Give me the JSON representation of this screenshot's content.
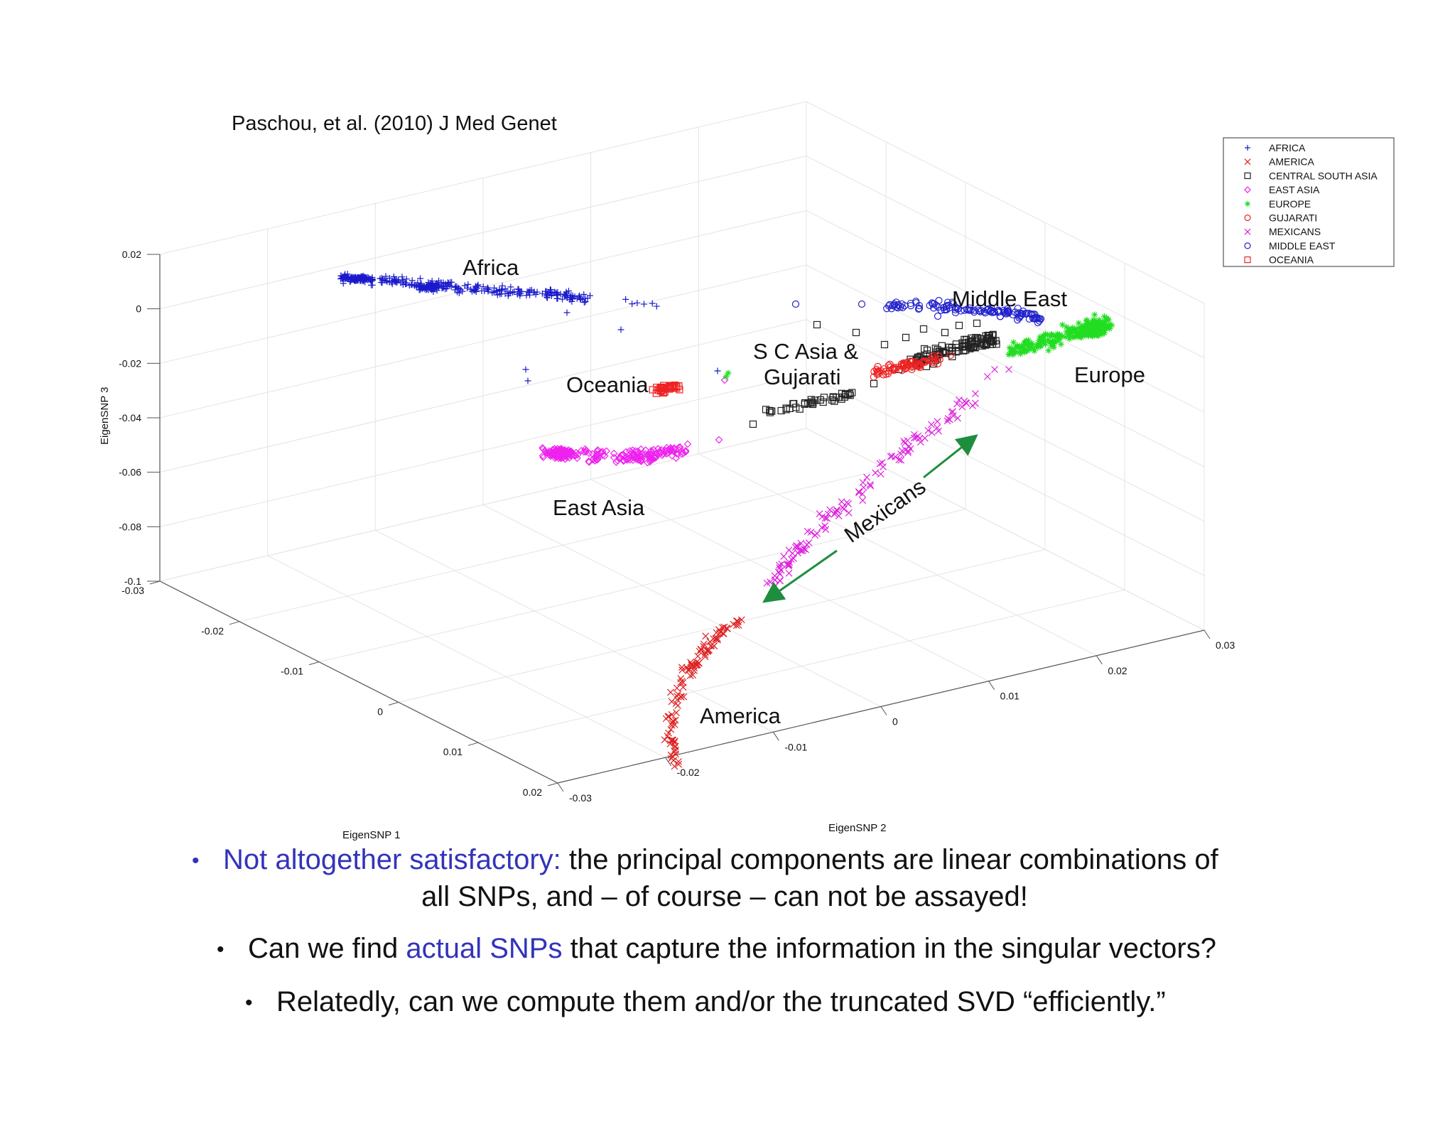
{
  "citation": "Paschou, et al. (2010) J Med Genet",
  "chart_data": {
    "type": "scatter",
    "projection": "3d",
    "xlabel": "EigenSNP 1",
    "ylabel": "EigenSNP 2",
    "zlabel": "EigenSNP 3",
    "xlim": [
      -0.03,
      0.02
    ],
    "ylim": [
      -0.03,
      0.03
    ],
    "zlim": [
      -0.1,
      0.02
    ],
    "xticks": [
      "-0.03",
      "-0.02",
      "-0.01",
      "0",
      "0.01",
      "0.02"
    ],
    "yticks": [
      "-0.03",
      "-0.02",
      "-0.01",
      "0",
      "0.01",
      "0.02",
      "0.03"
    ],
    "zticks": [
      "0.02",
      "0",
      "-0.02",
      "-0.04",
      "-0.06",
      "-0.08",
      "-0.1"
    ],
    "grid": true,
    "legend_position": "top-right",
    "legend": [
      {
        "name": "AFRICA",
        "marker": "+",
        "color": "#1a1acc"
      },
      {
        "name": "AMERICA",
        "marker": "x",
        "color": "#dd2222"
      },
      {
        "name": "CENTRAL SOUTH ASIA",
        "marker": "square",
        "color": "#222222"
      },
      {
        "name": "EAST ASIA",
        "marker": "diamond",
        "color": "#ee22ee"
      },
      {
        "name": "EUROPE",
        "marker": "*",
        "color": "#22dd22"
      },
      {
        "name": "GUJARATI",
        "marker": "circle",
        "color": "#ee2222"
      },
      {
        "name": "MEXICANS",
        "marker": "x",
        "color": "#dd22dd"
      },
      {
        "name": "MIDDLE EAST",
        "marker": "circle",
        "color": "#2222cc"
      },
      {
        "name": "OCEANIA",
        "marker": "square",
        "color": "#ee2222"
      }
    ],
    "annotations": [
      "Africa",
      "Middle East",
      "S C Asia &",
      "Gujarati",
      "Europe",
      "Oceania",
      "East Asia",
      "Mexicans",
      "America"
    ],
    "annotation_arrow": {
      "label": "Mexicans",
      "color": "#1e8e3e",
      "direction": "both"
    }
  },
  "bullets": {
    "b1_highlight": "Not altogether satisfactory:",
    "b1_rest": " the principal components are linear combinations of",
    "b1_line2": "all SNPs, and – of course – can not be assayed!",
    "b2_pre": "Can we find ",
    "b2_highlight": "actual SNPs",
    "b2_post": " that capture the information in the singular vectors?",
    "b3": "Relatedly, can we compute them and/or the truncated SVD “efficiently.”",
    "bullet_char": "•"
  }
}
